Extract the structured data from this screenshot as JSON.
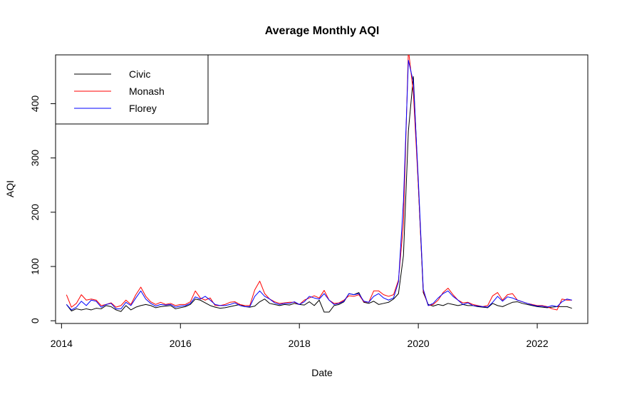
{
  "chart_data": {
    "type": "line",
    "title": "Average Monthly AQI",
    "xlabel": "Date",
    "ylabel": "AQI",
    "xlim": [
      2013.9,
      2022.85
    ],
    "ylim": [
      -5,
      490
    ],
    "xticks": [
      2014,
      2016,
      2018,
      2020,
      2022
    ],
    "yticks": [
      0,
      100,
      200,
      300,
      400
    ],
    "legend_position": "top-left",
    "grid": false,
    "x_start_label": "2014-02",
    "x_end_label": "2022-07",
    "series": [
      {
        "name": "Civic",
        "color": "#000000",
        "values": [
          30,
          18,
          22,
          20,
          22,
          20,
          23,
          22,
          28,
          26,
          20,
          17,
          28,
          20,
          25,
          28,
          30,
          28,
          24,
          26,
          27,
          28,
          22,
          24,
          26,
          30,
          40,
          38,
          33,
          28,
          25,
          23,
          24,
          26,
          28,
          30,
          26,
          25,
          27,
          35,
          40,
          32,
          30,
          28,
          30,
          29,
          32,
          30,
          29,
          35,
          28,
          38,
          16,
          16,
          28,
          30,
          35,
          50,
          48,
          52,
          34,
          32,
          36,
          30,
          32,
          34,
          40,
          50,
          120,
          350,
          450,
          250,
          52,
          30,
          27,
          30,
          28,
          32,
          30,
          28,
          30,
          28,
          28,
          26,
          25,
          24,
          32,
          28,
          26,
          30,
          34,
          35,
          32,
          30,
          28,
          26,
          25,
          24,
          25,
          26,
          26,
          26,
          23
        ]
      },
      {
        "name": "Monash",
        "color": "#ff0000",
        "values": [
          48,
          25,
          32,
          48,
          38,
          40,
          38,
          28,
          30,
          33,
          25,
          28,
          38,
          30,
          48,
          62,
          45,
          35,
          30,
          34,
          30,
          32,
          28,
          30,
          30,
          35,
          55,
          42,
          38,
          42,
          28,
          28,
          30,
          34,
          35,
          30,
          28,
          28,
          57,
          73,
          50,
          40,
          35,
          32,
          33,
          34,
          34,
          30,
          38,
          42,
          46,
          42,
          56,
          38,
          32,
          33,
          38,
          46,
          45,
          48,
          35,
          34,
          55,
          55,
          48,
          45,
          48,
          75,
          180,
          500,
          420,
          250,
          55,
          28,
          30,
          38,
          52,
          60,
          48,
          38,
          33,
          34,
          30,
          28,
          26,
          28,
          46,
          52,
          38,
          48,
          50,
          38,
          35,
          32,
          30,
          28,
          28,
          26,
          22,
          20,
          40,
          38,
          38
        ]
      },
      {
        "name": "Florey",
        "color": "#0000ff",
        "values": [
          30,
          20,
          25,
          36,
          28,
          38,
          36,
          25,
          30,
          32,
          22,
          22,
          34,
          28,
          42,
          55,
          40,
          32,
          27,
          30,
          29,
          30,
          25,
          27,
          28,
          32,
          44,
          40,
          45,
          38,
          30,
          28,
          28,
          30,
          33,
          28,
          26,
          26,
          45,
          55,
          45,
          40,
          33,
          30,
          32,
          32,
          35,
          30,
          35,
          45,
          42,
          40,
          50,
          38,
          30,
          32,
          36,
          50,
          48,
          50,
          36,
          34,
          45,
          50,
          42,
          38,
          42,
          72,
          220,
          480,
          440,
          260,
          58,
          28,
          32,
          42,
          50,
          55,
          45,
          38,
          30,
          33,
          28,
          27,
          26,
          25,
          34,
          45,
          36,
          44,
          42,
          38,
          35,
          32,
          29,
          27,
          27,
          25,
          28,
          26,
          35,
          40,
          38
        ]
      }
    ]
  }
}
